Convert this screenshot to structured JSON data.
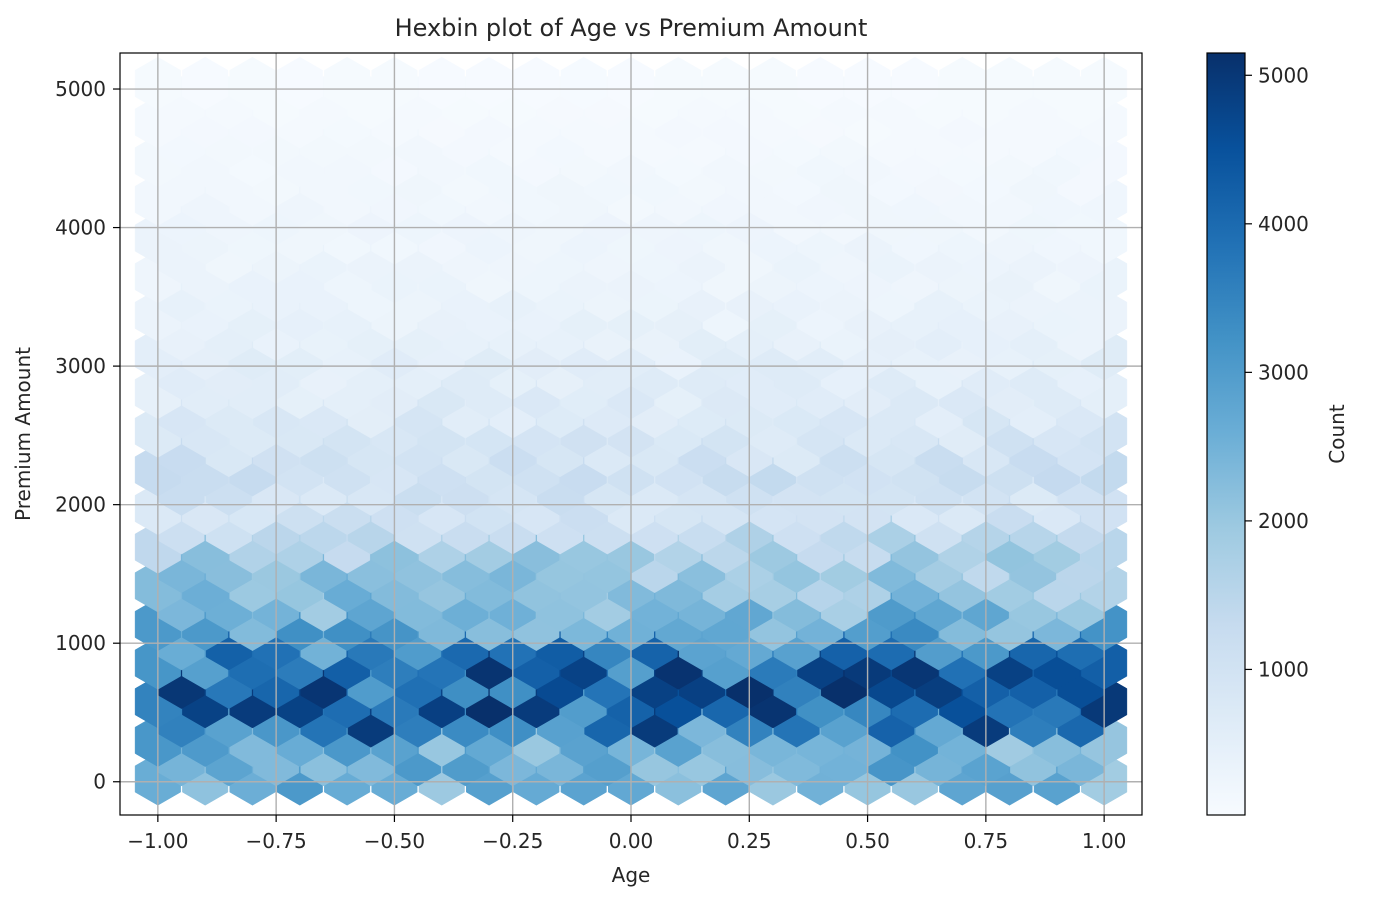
{
  "chart_data": {
    "type": "heatmap",
    "subtype": "hexbin",
    "title": "Hexbin plot of Age vs Premium Amount",
    "xlabel": "Age",
    "ylabel": "Premium Amount",
    "xlim": [
      -1.08,
      1.08
    ],
    "ylim": [
      -240,
      5260
    ],
    "x_ticks": [
      -1.0,
      -0.75,
      -0.5,
      -0.25,
      0.0,
      0.25,
      0.5,
      0.75,
      1.0
    ],
    "x_tick_labels": [
      "−1.00",
      "−0.75",
      "−0.50",
      "−0.25",
      "0.00",
      "0.25",
      "0.50",
      "0.75",
      "1.00"
    ],
    "y_ticks": [
      0,
      1000,
      2000,
      3000,
      4000,
      5000
    ],
    "y_tick_labels": [
      "0",
      "1000",
      "2000",
      "3000",
      "4000",
      "5000"
    ],
    "grid": true,
    "colormap": "Blues",
    "colorbar": {
      "label": "Count",
      "range": [
        20,
        5150
      ],
      "ticks": [
        1000,
        2000,
        3000,
        4000,
        5000
      ],
      "tick_labels": [
        "1000",
        "2000",
        "3000",
        "4000",
        "5000"
      ]
    },
    "hex_grid": {
      "x_range": [
        -1.0,
        1.0
      ],
      "y_range": [
        20,
        5040
      ],
      "columns": 20,
      "rows": 18
    },
    "density_profile": {
      "premium_levels": [
        20,
        330,
        610,
        890,
        1170,
        1450,
        1730,
        2010,
        2290,
        2570,
        2850,
        3130,
        3410,
        3690,
        3970,
        4250,
        4530,
        4810,
        5040
      ],
      "typical_count": [
        2400,
        2600,
        4300,
        3900,
        2600,
        2000,
        1700,
        900,
        1100,
        800,
        600,
        500,
        350,
        300,
        250,
        200,
        150,
        100,
        60
      ]
    }
  }
}
